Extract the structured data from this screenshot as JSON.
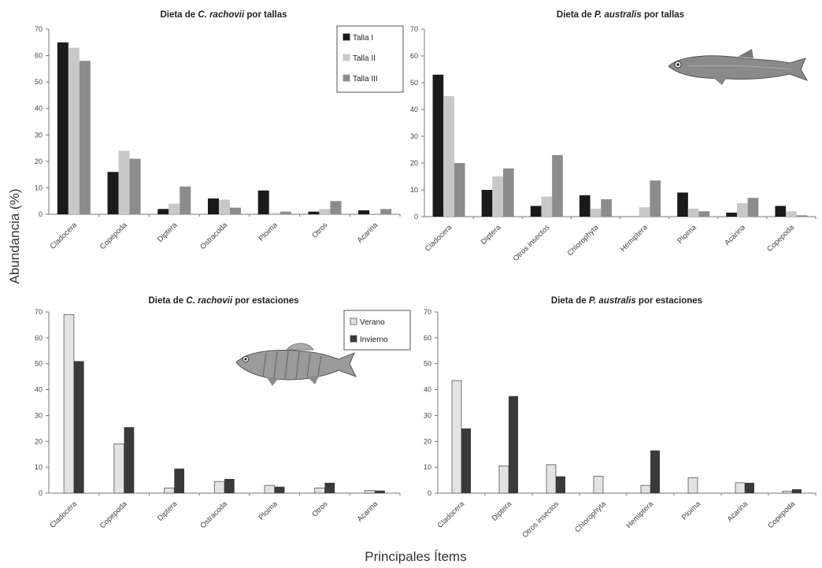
{
  "figure": {
    "ylabel": "Abundancia (%)",
    "xlabel": "Principales Ítems"
  },
  "chart_data": [
    {
      "type": "bar",
      "title_parts": [
        {
          "text": "Dieta de "
        },
        {
          "text": "C. rachovii",
          "italic": true
        },
        {
          "text": " por tallas"
        }
      ],
      "categories": [
        "Cladocera",
        "Copepoda",
        "Diptera",
        "Ostracoda",
        "Ploima",
        "Otros",
        "Acarina"
      ],
      "ylim": [
        0,
        70
      ],
      "yticks": [
        "0",
        "10",
        "20",
        "30",
        "40",
        "50",
        "60",
        "70"
      ],
      "legend": {
        "position": "top-right"
      },
      "series": [
        {
          "name": "Talla I",
          "color": "#1a1a1a",
          "values": [
            65,
            16,
            2,
            6,
            9,
            1,
            1.5
          ]
        },
        {
          "name": "Talla II",
          "color": "#c8c8c8",
          "values": [
            63,
            24,
            4,
            5.5,
            0.5,
            2,
            0.3
          ]
        },
        {
          "name": "Talla III",
          "color": "#8c8c8c",
          "values": [
            58,
            21,
            10.5,
            2.5,
            1,
            5,
            2
          ]
        }
      ]
    },
    {
      "type": "bar",
      "title_parts": [
        {
          "text": "Dieta de "
        },
        {
          "text": "P. australis",
          "italic": true
        },
        {
          "text": " por tallas"
        }
      ],
      "categories": [
        "Cladocera",
        "Diptera",
        "Otros insectos",
        "Chlorophyta",
        "Hemiptera",
        "Ploima",
        "Acarina",
        "Copepoda"
      ],
      "ylim": [
        0,
        70
      ],
      "yticks": [
        "0",
        "10",
        "20",
        "30",
        "40",
        "50",
        "60",
        "70"
      ],
      "series": [
        {
          "color": "#1a1a1a",
          "values": [
            53,
            10,
            4,
            8,
            0,
            9,
            1.5,
            4
          ]
        },
        {
          "color": "#c8c8c8",
          "values": [
            45,
            15,
            7.5,
            3,
            3.5,
            3,
            5,
            2
          ]
        },
        {
          "color": "#8c8c8c",
          "values": [
            20,
            18,
            23,
            6.5,
            13.5,
            2,
            7,
            0.5
          ]
        }
      ]
    },
    {
      "type": "bar",
      "title_parts": [
        {
          "text": "Dieta de "
        },
        {
          "text": "C. rachovii",
          "italic": true
        },
        {
          "text": " por estaciones"
        }
      ],
      "categories": [
        "Cladocera",
        "Copepoda",
        "Diptera",
        "Ostracoda",
        "Ploima",
        "Otros",
        "Acarina"
      ],
      "ylim": [
        0,
        70
      ],
      "yticks": [
        "0",
        "10",
        "20",
        "30",
        "40",
        "50",
        "60",
        "70"
      ],
      "legend": {
        "position": "top-right"
      },
      "series": [
        {
          "name": "Verano",
          "color": "#e3e3e3",
          "values": [
            69,
            19,
            2,
            4.5,
            3,
            2,
            1
          ]
        },
        {
          "name": "Invierno",
          "color": "#3a3a3a",
          "values": [
            51,
            25.5,
            9.5,
            5.5,
            2.5,
            4,
            1
          ]
        }
      ]
    },
    {
      "type": "bar",
      "title_parts": [
        {
          "text": "Dieta de "
        },
        {
          "text": "P. australis",
          "italic": true
        },
        {
          "text": " por estaciones"
        }
      ],
      "categories": [
        "Cladocera",
        "Diptera",
        "Otros insectos",
        "Chlorophyta",
        "Hemiptera",
        "Ploima",
        "Acarina",
        "Copepoda"
      ],
      "ylim": [
        0,
        70
      ],
      "yticks": [
        "0",
        "10",
        "20",
        "30",
        "40",
        "50",
        "60",
        "70"
      ],
      "series": [
        {
          "color": "#e3e3e3",
          "values": [
            43.5,
            10.5,
            11,
            6.5,
            3,
            6,
            4,
            0.8
          ]
        },
        {
          "color": "#3a3a3a",
          "values": [
            25,
            37.5,
            6.5,
            0,
            16.5,
            0,
            4,
            1.5
          ]
        }
      ]
    }
  ]
}
